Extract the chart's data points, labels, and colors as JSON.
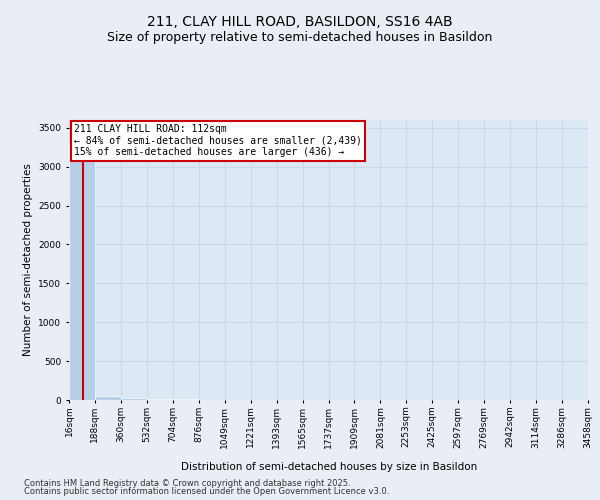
{
  "title_line1": "211, CLAY HILL ROAD, BASILDON, SS16 4AB",
  "title_line2": "Size of property relative to semi-detached houses in Basildon",
  "xlabel": "Distribution of semi-detached houses by size in Basildon",
  "ylabel": "Number of semi-detached properties",
  "annotation_title": "211 CLAY HILL ROAD: 112sqm",
  "annotation_line2": "← 84% of semi-detached houses are smaller (2,439)",
  "annotation_line3": "15% of semi-detached houses are larger (436) →",
  "footer_line1": "Contains HM Land Registry data © Crown copyright and database right 2025.",
  "footer_line2": "Contains public sector information licensed under the Open Government Licence v3.0.",
  "property_size": 112,
  "bin_edges": [
    16,
    188,
    360,
    532,
    704,
    876,
    1049,
    1221,
    1393,
    1565,
    1737,
    1909,
    2081,
    2253,
    2425,
    2597,
    2769,
    2942,
    3114,
    3286,
    3458
  ],
  "bin_labels": [
    "16sqm",
    "188sqm",
    "360sqm",
    "532sqm",
    "704sqm",
    "876sqm",
    "1049sqm",
    "1221sqm",
    "1393sqm",
    "1565sqm",
    "1737sqm",
    "1909sqm",
    "2081sqm",
    "2253sqm",
    "2425sqm",
    "2597sqm",
    "2769sqm",
    "2942sqm",
    "3114sqm",
    "3286sqm",
    "3458sqm"
  ],
  "bar_heights": [
    3300,
    50,
    20,
    10,
    8,
    5,
    4,
    3,
    2,
    2,
    2,
    1,
    1,
    1,
    1,
    1,
    1,
    1,
    0,
    0
  ],
  "bar_color": "#b8cfe8",
  "subject_line_color": "#cc0000",
  "grid_color": "#c8d8e8",
  "plot_background": "#dce8f3",
  "figure_background": "#e8eef4",
  "annotation_box_color": "#ffffff",
  "annotation_border_color": "#cc0000",
  "ylim": [
    0,
    3600
  ],
  "yticks": [
    0,
    500,
    1000,
    1500,
    2000,
    2500,
    3000,
    3500
  ],
  "title_fontsize": 10,
  "subtitle_fontsize": 9,
  "axis_label_fontsize": 7.5,
  "tick_fontsize": 6.5,
  "annotation_fontsize": 7,
  "footer_fontsize": 6
}
